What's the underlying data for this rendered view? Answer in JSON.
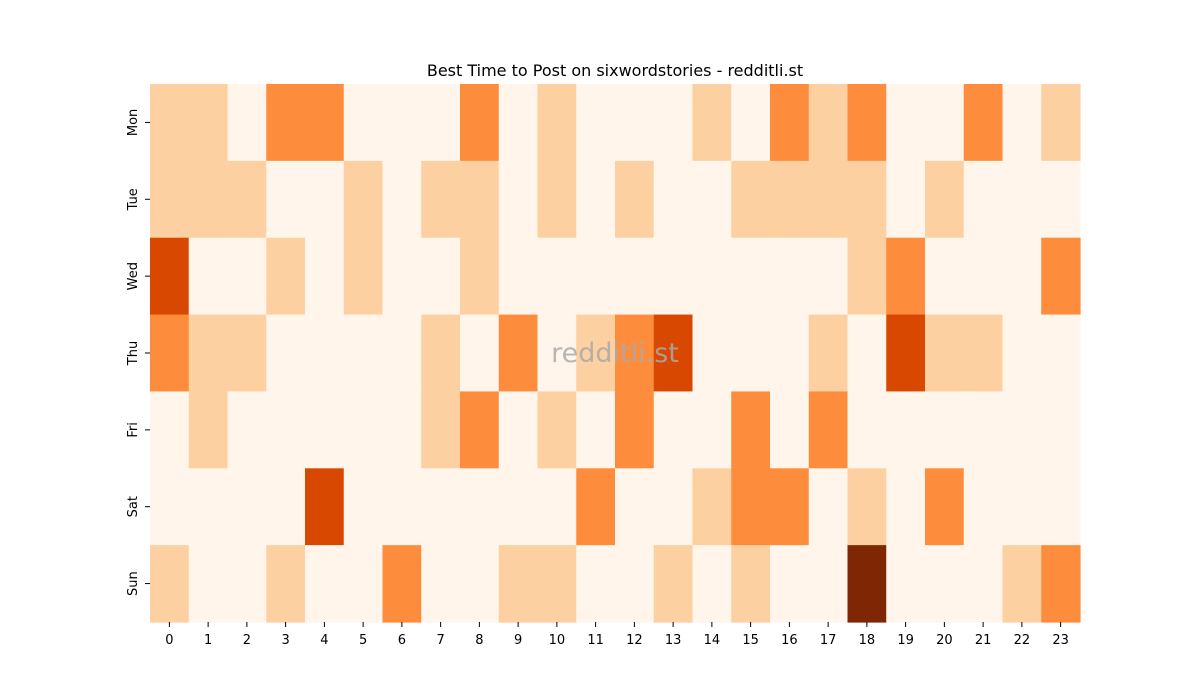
{
  "chart_data": {
    "type": "heatmap",
    "title": "Best Time to Post on sixwordstories - redditli.st",
    "watermark": "redditli.st",
    "x_categories": [
      "0",
      "1",
      "2",
      "3",
      "4",
      "5",
      "6",
      "7",
      "8",
      "9",
      "10",
      "11",
      "12",
      "13",
      "14",
      "15",
      "16",
      "17",
      "18",
      "19",
      "20",
      "21",
      "22",
      "23"
    ],
    "y_categories": [
      "Mon",
      "Tue",
      "Wed",
      "Thu",
      "Fri",
      "Sat",
      "Sun"
    ],
    "levels": [
      [
        1,
        1,
        0,
        2,
        2,
        0,
        0,
        0,
        2,
        0,
        1,
        0,
        0,
        0,
        1,
        0,
        2,
        1,
        2,
        0,
        0,
        2,
        0,
        1
      ],
      [
        1,
        1,
        1,
        0,
        0,
        1,
        0,
        1,
        1,
        0,
        1,
        0,
        1,
        0,
        0,
        1,
        1,
        1,
        1,
        0,
        1,
        0,
        0,
        0
      ],
      [
        3,
        0,
        0,
        1,
        0,
        1,
        0,
        0,
        1,
        0,
        0,
        0,
        0,
        0,
        0,
        0,
        0,
        0,
        1,
        2,
        0,
        0,
        0,
        2
      ],
      [
        2,
        1,
        1,
        0,
        0,
        0,
        0,
        1,
        0,
        2,
        0,
        1,
        2,
        3,
        0,
        0,
        0,
        1,
        0,
        3,
        1,
        1,
        0,
        0
      ],
      [
        0,
        1,
        0,
        0,
        0,
        0,
        0,
        1,
        2,
        0,
        1,
        0,
        2,
        0,
        0,
        2,
        0,
        2,
        0,
        0,
        0,
        0,
        0,
        0
      ],
      [
        0,
        0,
        0,
        0,
        3,
        0,
        0,
        0,
        0,
        0,
        0,
        2,
        0,
        0,
        1,
        2,
        2,
        0,
        1,
        0,
        2,
        0,
        0,
        0
      ],
      [
        1,
        0,
        0,
        1,
        0,
        0,
        2,
        0,
        0,
        1,
        1,
        0,
        0,
        1,
        0,
        1,
        0,
        0,
        4,
        0,
        0,
        0,
        1,
        2
      ]
    ],
    "colors": [
      "#fff5eb",
      "#fdd0a2",
      "#fd8d3c",
      "#d94801",
      "#7f2704"
    ]
  }
}
